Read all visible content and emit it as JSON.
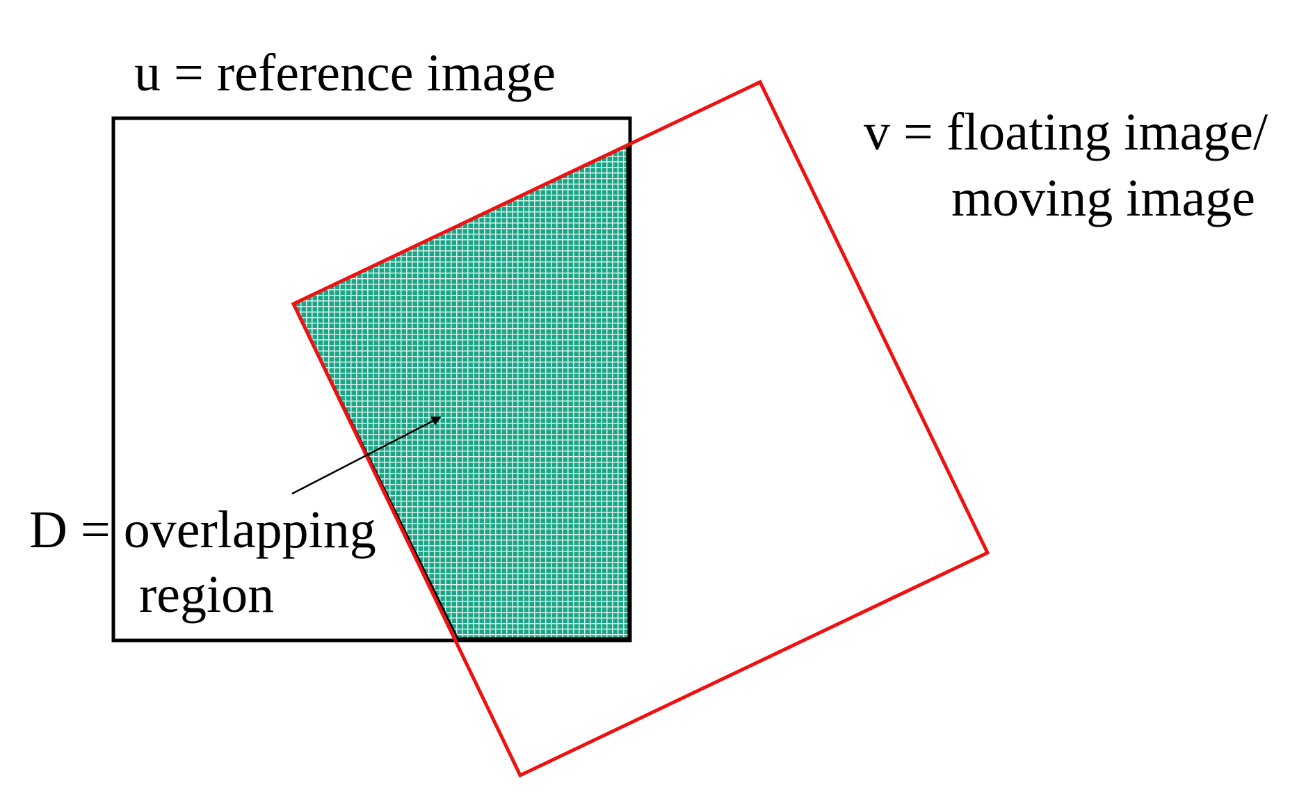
{
  "labels": {
    "u": "u = reference image",
    "v_line1": "v = floating image/",
    "v_line2": "moving image",
    "d_line1": "D = overlapping",
    "d_line2": "region"
  },
  "colors": {
    "reference_frame": "#000000",
    "floating_frame": "#ee1111",
    "overlap_fill": "#1aa586",
    "overlap_grid": "#ffffff",
    "text": "#000000"
  }
}
